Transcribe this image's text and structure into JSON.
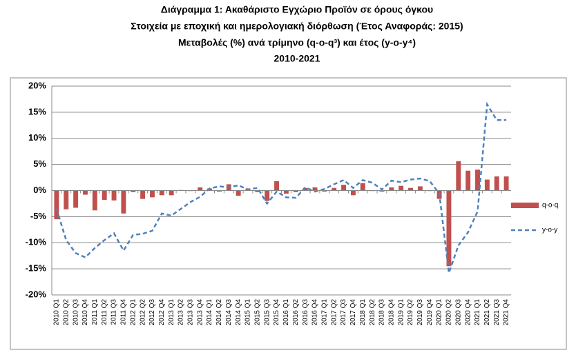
{
  "chart_data": {
    "type": "bar_line",
    "title": [
      "Διάγραμμα 1: Ακαθάριστο Εγχώριο Προϊόν σε όρους όγκου",
      "Στοιχεία με εποχική και ημερολογιακή διόρθωση (Έτος Αναφοράς: 2015)",
      "Μεταβολές (%) ανά τρίμηνο (q-o-q³) και έτος (y-o-y⁴)",
      "2010-2021"
    ],
    "categories": [
      "2010 Q1",
      "2010 Q2",
      "2010 Q3",
      "2010 Q4",
      "2011 Q1",
      "2011 Q2",
      "2011 Q3",
      "2011 Q4",
      "2012 Q1",
      "2012 Q2",
      "2012 Q3",
      "2012 Q4",
      "2013 Q1",
      "2013 Q2",
      "2013 Q3",
      "2013 Q4",
      "2014 Q1",
      "2014 Q2",
      "2014 Q3",
      "2014 Q4",
      "2015 Q1",
      "2015 Q2",
      "2015 Q3",
      "2015 Q4",
      "2016 Q1",
      "2016 Q2",
      "2016 Q3",
      "2016 Q4",
      "2017 Q1",
      "2017 Q2",
      "2017 Q3",
      "2017 Q4",
      "2018 Q1",
      "2018 Q2",
      "2018 Q3",
      "2018 Q4",
      "2019 Q1",
      "2019 Q2",
      "2019 Q3",
      "2019 Q4",
      "2020 Q1",
      "2020 Q2",
      "2020 Q3",
      "2020 Q4",
      "2021 Q1",
      "2021 Q2",
      "2021 Q3",
      "2021 Q4"
    ],
    "series": [
      {
        "name": "q-o-q",
        "type": "bar",
        "color": "#c0504d",
        "values": [
          -5.5,
          -3.6,
          -3.3,
          -0.8,
          -3.8,
          -1.8,
          -1.9,
          -4.4,
          -0.3,
          -1.6,
          -1.3,
          -0.9,
          -0.9,
          0.1,
          -0.1,
          0.6,
          0.4,
          -0.2,
          1.2,
          -1.0,
          0.4,
          -0.3,
          -2.0,
          1.8,
          -0.6,
          -0.3,
          0.5,
          0.6,
          -0.2,
          0.5,
          1.1,
          -0.9,
          1.4,
          -0.1,
          -0.2,
          0.6,
          0.9,
          0.5,
          0.8,
          -0.1,
          -1.6,
          -14.5,
          5.6,
          3.8,
          4.0,
          2.1,
          2.7,
          2.7
        ]
      },
      {
        "name": "y-o-y",
        "type": "line",
        "color": "#4f81bd",
        "dashed": true,
        "values": [
          -3.5,
          -9.5,
          -12,
          -12.8,
          -11,
          -9.5,
          -8.2,
          -11.5,
          -8.5,
          -8.3,
          -7.7,
          -4.4,
          -4.8,
          -3.5,
          -2.2,
          -1.2,
          0.4,
          0.8,
          0.6,
          1.0,
          0.2,
          0.5,
          -2.5,
          -0.2,
          -1.3,
          -1.4,
          0.6,
          -0.2,
          0.3,
          1.2,
          2.0,
          0.5,
          2.0,
          1.5,
          0.2,
          1.9,
          1.6,
          2.1,
          2.3,
          1.8,
          -0.6,
          -15.8,
          -10.5,
          -8.0,
          -4.0,
          16.5,
          13.5,
          13.5
        ]
      }
    ],
    "ylim": [
      -20,
      20
    ],
    "yticks": [
      {
        "value": -20,
        "label": "-20%"
      },
      {
        "value": -15,
        "label": "-15%"
      },
      {
        "value": -10,
        "label": "-10%"
      },
      {
        "value": -5,
        "label": "-5%"
      },
      {
        "value": 0,
        "label": "0%"
      },
      {
        "value": 5,
        "label": "5%"
      },
      {
        "value": 10,
        "label": "10%"
      },
      {
        "value": 15,
        "label": "15%"
      },
      {
        "value": 20,
        "label": "20%"
      }
    ],
    "grid": true,
    "legend": "right"
  }
}
